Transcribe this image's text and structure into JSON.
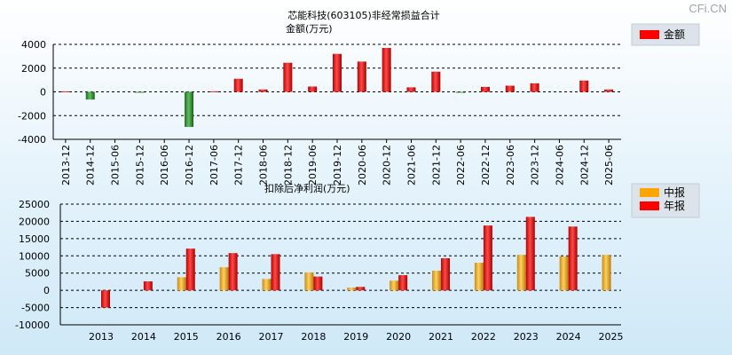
{
  "brand": "CFi.CN",
  "chart_data": [
    {
      "type": "bar",
      "title": "芯能科技(603105)非经常损益合计",
      "subtitle": "金额(万元)",
      "legend": [
        {
          "name": "金额",
          "color": "#ff0000"
        }
      ],
      "ylim": [
        -4000,
        4000
      ],
      "yticks": [
        4000,
        2000,
        0,
        -2000,
        -4000
      ],
      "categories": [
        "2013-12",
        "2014-12",
        "2015-06",
        "2015-12",
        "2016-06",
        "2016-12",
        "2017-06",
        "2017-12",
        "2018-06",
        "2018-12",
        "2019-06",
        "2019-12",
        "2020-06",
        "2020-12",
        "2021-06",
        "2021-12",
        "2022-06",
        "2022-12",
        "2023-06",
        "2023-12",
        "2024-06",
        "2024-12",
        "2025-06"
      ],
      "values": [
        40,
        -650,
        0,
        -60,
        0,
        -2950,
        40,
        1100,
        200,
        2450,
        450,
        3200,
        2550,
        3700,
        380,
        1700,
        -80,
        420,
        520,
        720,
        0,
        950,
        200
      ]
    },
    {
      "type": "bar",
      "title": "扣除后净利润(万元)",
      "legend": [
        {
          "name": "中报",
          "color": "#ffa500"
        },
        {
          "name": "年报",
          "color": "#ff0000"
        }
      ],
      "ylim": [
        -10000,
        25000
      ],
      "yticks": [
        25000,
        20000,
        15000,
        10000,
        5000,
        0,
        -5000,
        -10000
      ],
      "categories": [
        "2013",
        "2014",
        "2015",
        "2016",
        "2017",
        "2018",
        "2019",
        "2020",
        "2021",
        "2022",
        "2023",
        "2024",
        "2025"
      ],
      "series": [
        {
          "name": "中报",
          "values": [
            null,
            null,
            3800,
            6700,
            3300,
            5200,
            800,
            2800,
            5700,
            8000,
            10300,
            9800,
            10300
          ]
        },
        {
          "name": "年报",
          "values": [
            -5000,
            2600,
            12100,
            10800,
            10500,
            4000,
            1000,
            4400,
            9300,
            18800,
            21300,
            18500,
            null
          ]
        }
      ]
    }
  ]
}
